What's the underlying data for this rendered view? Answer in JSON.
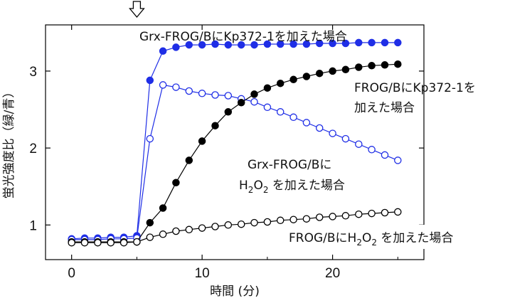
{
  "chart_data": {
    "type": "line",
    "xlabel": "時間 (分)",
    "ylabel": "蛍光強度比（緑/青）",
    "xlim": [
      -2,
      27
    ],
    "ylim": [
      0.55,
      3.6
    ],
    "x_ticks": [
      0,
      10,
      20
    ],
    "y_ticks": [
      1,
      2,
      3
    ],
    "arrow_marker_x": 5,
    "series": [
      {
        "name": "Grx-FROG/BにKp372-1を加えた場合",
        "color": "#1f2ee6",
        "marker": "filled",
        "x": [
          0,
          1,
          2,
          3,
          4,
          5,
          6,
          7,
          8,
          9,
          10,
          11,
          12,
          13,
          14,
          15,
          16,
          17,
          18,
          19,
          20,
          21,
          22,
          23,
          24,
          25
        ],
        "y": [
          0.82,
          0.83,
          0.83,
          0.84,
          0.84,
          0.86,
          2.88,
          3.26,
          3.31,
          3.34,
          3.34,
          3.35,
          3.34,
          3.34,
          3.34,
          3.35,
          3.35,
          3.35,
          3.35,
          3.36,
          3.36,
          3.36,
          3.37,
          3.37,
          3.37,
          3.37
        ]
      },
      {
        "name": "Grx-FROG/BにH2O2を加えた場合",
        "color": "#1f2ee6",
        "marker": "open",
        "x": [
          0,
          1,
          2,
          3,
          4,
          5,
          6,
          7,
          8,
          9,
          10,
          11,
          12,
          13,
          14,
          15,
          16,
          17,
          18,
          19,
          20,
          21,
          22,
          23,
          24,
          25
        ],
        "y": [
          0.81,
          0.81,
          0.81,
          0.82,
          0.82,
          0.83,
          2.12,
          2.82,
          2.79,
          2.74,
          2.71,
          2.69,
          2.68,
          2.64,
          2.6,
          2.53,
          2.47,
          2.4,
          2.33,
          2.26,
          2.19,
          2.12,
          2.05,
          1.98,
          1.91,
          1.84
        ]
      },
      {
        "name": "FROG/BにKp372-1を加えた場合",
        "color": "#000000",
        "marker": "filled",
        "x": [
          0,
          1,
          2,
          3,
          4,
          5,
          6,
          7,
          8,
          9,
          10,
          11,
          12,
          13,
          14,
          15,
          16,
          17,
          18,
          19,
          20,
          21,
          22,
          23,
          24,
          25
        ],
        "y": [
          0.78,
          0.78,
          0.78,
          0.78,
          0.78,
          0.78,
          1.03,
          1.22,
          1.55,
          1.84,
          2.09,
          2.29,
          2.47,
          2.59,
          2.7,
          2.78,
          2.84,
          2.89,
          2.93,
          2.97,
          3.0,
          3.02,
          3.05,
          3.07,
          3.08,
          3.09
        ]
      },
      {
        "name": "FROG/BにH2O2を加えた場合",
        "color": "#000000",
        "marker": "open",
        "x": [
          0,
          1,
          2,
          3,
          4,
          5,
          6,
          7,
          8,
          9,
          10,
          11,
          12,
          13,
          14,
          15,
          16,
          17,
          18,
          19,
          20,
          21,
          22,
          23,
          24,
          25
        ],
        "y": [
          0.77,
          0.77,
          0.77,
          0.77,
          0.77,
          0.78,
          0.84,
          0.88,
          0.92,
          0.94,
          0.96,
          0.98,
          1.0,
          1.01,
          1.03,
          1.04,
          1.06,
          1.07,
          1.08,
          1.1,
          1.11,
          1.12,
          1.14,
          1.15,
          1.16,
          1.17
        ]
      }
    ],
    "annotations": {
      "grx_kp": "Grx-FROG/BにKp372-1を加えた場合",
      "frog_kp_line1": "FROG/BにKp372-1を",
      "frog_kp_line2": "加えた場合",
      "grx_h2o2_line1": "Grx-FROG/Bに",
      "grx_h2o2_line2_h": "H",
      "grx_h2o2_line2_sub1": "2",
      "grx_h2o2_line2_o": "O",
      "grx_h2o2_line2_sub2": "2",
      "grx_h2o2_line2_rest": " を加えた場合",
      "frog_h2o2_pre": "FROG/BにH",
      "frog_h2o2_sub1": "2",
      "frog_h2o2_o": "O",
      "frog_h2o2_sub2": "2",
      "frog_h2o2_rest": " を加えた場合"
    }
  }
}
